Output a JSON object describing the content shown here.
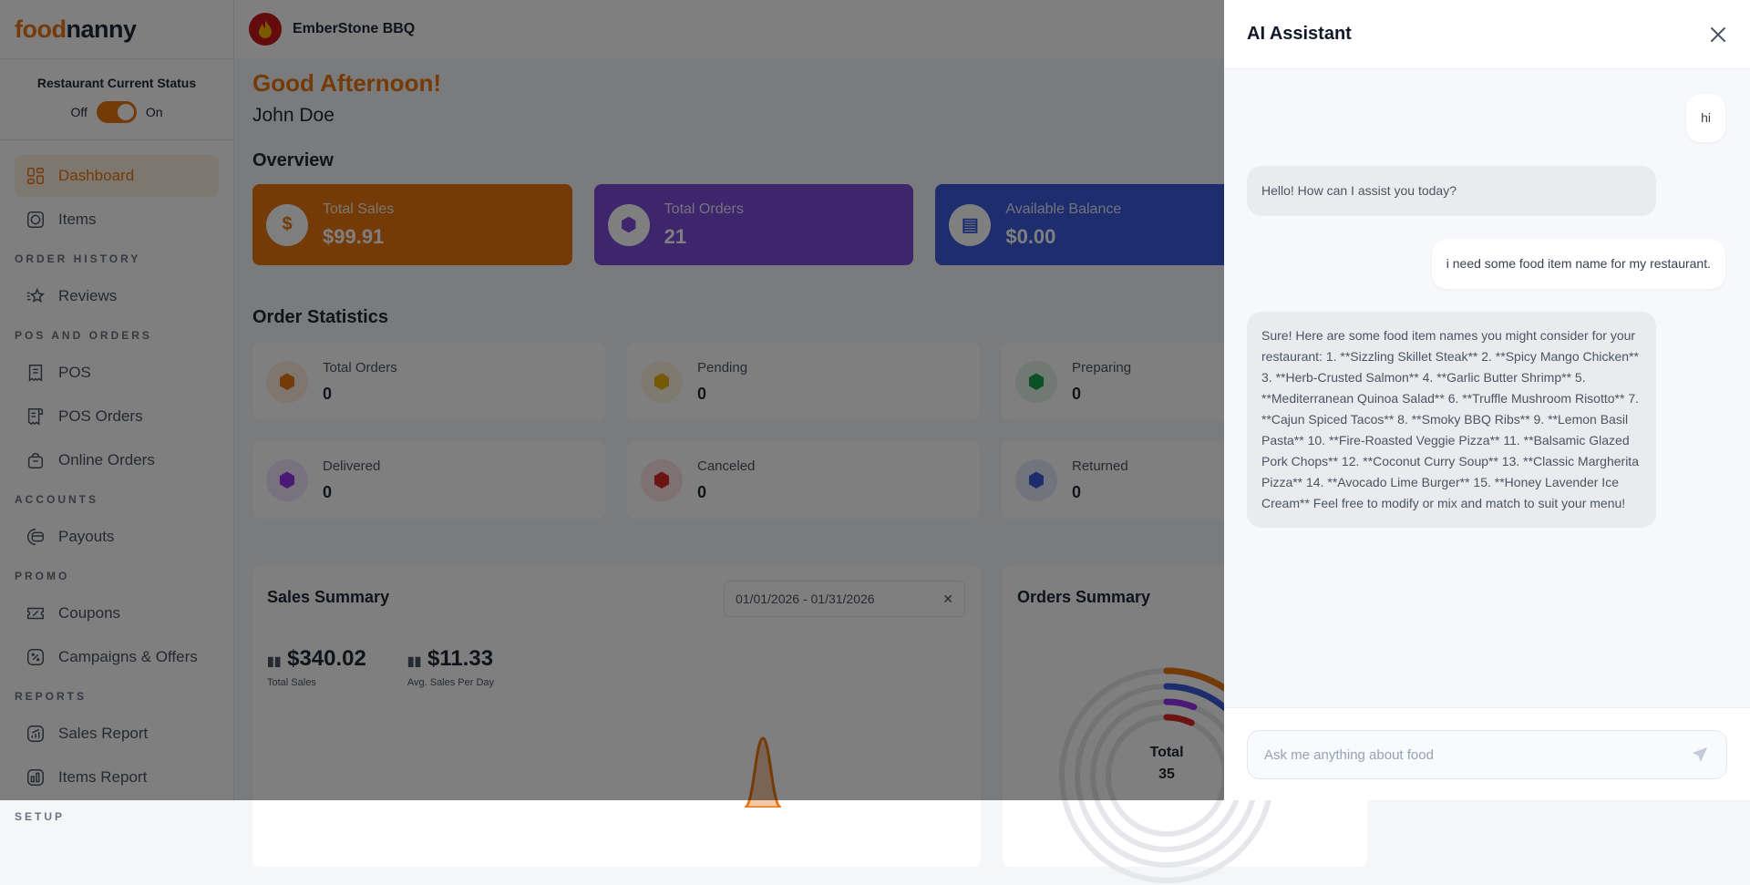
{
  "brand": {
    "logo_a": "food",
    "logo_b": "nanny",
    "accent": "#e8740f"
  },
  "sidebar": {
    "status_label": "Restaurant Current Status",
    "off": "Off",
    "on": "On",
    "status_on": true,
    "items": [
      {
        "type": "item",
        "label": "Dashboard",
        "icon": "dashboard-icon",
        "active": true
      },
      {
        "type": "item",
        "label": "Items",
        "icon": "items-icon"
      },
      {
        "type": "section",
        "label": "ORDER HISTORY"
      },
      {
        "type": "item",
        "label": "Reviews",
        "icon": "star-icon"
      },
      {
        "type": "section",
        "label": "POS AND ORDERS"
      },
      {
        "type": "item",
        "label": "POS",
        "icon": "receipt-icon"
      },
      {
        "type": "item",
        "label": "POS Orders",
        "icon": "receipt-list-icon"
      },
      {
        "type": "item",
        "label": "Online Orders",
        "icon": "bag-icon"
      },
      {
        "type": "section",
        "label": "ACCOUNTS"
      },
      {
        "type": "item",
        "label": "Payouts",
        "icon": "wallet-icon"
      },
      {
        "type": "section",
        "label": "PROMO"
      },
      {
        "type": "item",
        "label": "Coupons",
        "icon": "coupon-icon"
      },
      {
        "type": "item",
        "label": "Campaigns & Offers",
        "icon": "percent-icon"
      },
      {
        "type": "section",
        "label": "REPORTS"
      },
      {
        "type": "item",
        "label": "Sales Report",
        "icon": "chart-icon"
      },
      {
        "type": "item",
        "label": "Items Report",
        "icon": "bar-chart-icon"
      },
      {
        "type": "section",
        "label": "SETUP"
      }
    ]
  },
  "topbar": {
    "restaurant": "EmberStone BBQ"
  },
  "main": {
    "greeting": "Good Afternoon!",
    "user": "John Doe",
    "overview_title": "Overview",
    "overview": [
      {
        "label": "Total Sales",
        "value": "$99.91",
        "color": "#e8740f"
      },
      {
        "label": "Total Orders",
        "value": "21",
        "color": "#7c4ddb"
      },
      {
        "label": "Available Balance",
        "value": "$0.00",
        "color": "#3b5bdb"
      }
    ],
    "stats_title": "Order Statistics",
    "stats": [
      {
        "label": "Total Orders",
        "value": "0",
        "color": "#e8740f"
      },
      {
        "label": "Pending",
        "value": "0",
        "color": "#eab308"
      },
      {
        "label": "Preparing",
        "value": "0",
        "color": "#16a34a"
      },
      {
        "label": "Delivered",
        "value": "0",
        "color": "#9333ea"
      },
      {
        "label": "Canceled",
        "value": "0",
        "color": "#dc2626"
      },
      {
        "label": "Returned",
        "value": "0",
        "color": "#3b5bdb"
      }
    ],
    "sales_summary": {
      "title": "Sales Summary",
      "date_range": "01/01/2026 - 01/31/2026",
      "total_sales": "$340.02",
      "total_sales_label": "Total Sales",
      "avg": "$11.33",
      "avg_label": "Avg. Sales Per Day"
    },
    "orders_summary": {
      "title": "Orders Summary",
      "total_label": "Total",
      "total": "35",
      "ring_colors": [
        "#e8740f",
        "#3b5bdb",
        "#9333ea",
        "#dc2626"
      ]
    }
  },
  "assistant": {
    "title": "AI Assistant",
    "messages": [
      {
        "role": "user",
        "text": "hi"
      },
      {
        "role": "bot",
        "text": "Hello! How can I assist you today?"
      },
      {
        "role": "user",
        "text": "i need some food item name for my restaurant."
      },
      {
        "role": "bot",
        "text": "Sure! Here are some food item names you might consider for your restaurant: 1. **Sizzling Skillet Steak** 2. **Spicy Mango Chicken** 3. **Herb-Crusted Salmon** 4. **Garlic Butter Shrimp** 5. **Mediterranean Quinoa Salad** 6. **Truffle Mushroom Risotto** 7. **Cajun Spiced Tacos** 8. **Smoky BBQ Ribs** 9. **Lemon Basil Pasta** 10. **Fire-Roasted Veggie Pizza** 11. **Balsamic Glazed Pork Chops** 12. **Coconut Curry Soup** 13. **Classic Margherita Pizza** 14. **Avocado Lime Burger** 15. **Honey Lavender Ice Cream** Feel free to modify or mix and match to suit your menu!"
      }
    ],
    "input_placeholder": "Ask me anything about food"
  }
}
